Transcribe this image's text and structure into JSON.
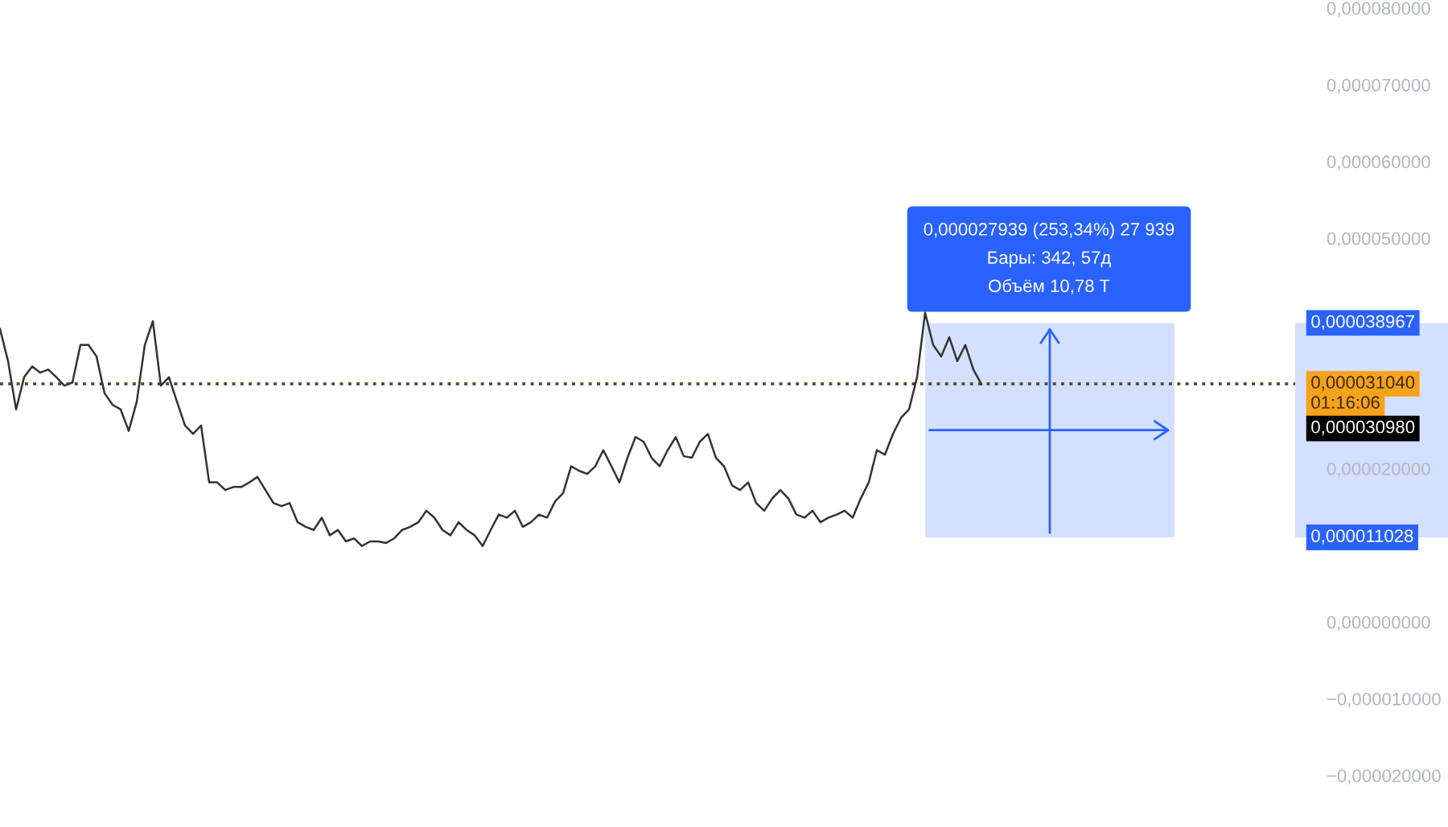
{
  "chart_data": {
    "type": "line",
    "categories": [
      null,
      null,
      null,
      null,
      null,
      null,
      null,
      null,
      null,
      null,
      null,
      null,
      null,
      null,
      null,
      null,
      null,
      null,
      null,
      null,
      null,
      null,
      null,
      null,
      null,
      null,
      null,
      null,
      null,
      null,
      null,
      null,
      null,
      null,
      null,
      null,
      null,
      null,
      null,
      null,
      null,
      null,
      null,
      null,
      null,
      null,
      null,
      null,
      null,
      null,
      null,
      null,
      null,
      null,
      null,
      null,
      null,
      null,
      null,
      null,
      null,
      null,
      null,
      null,
      null,
      null,
      null,
      null,
      null,
      null,
      null,
      null,
      null,
      null,
      null,
      null,
      null,
      null,
      null,
      null,
      null,
      null,
      null,
      null,
      null,
      null,
      null,
      null,
      null,
      null,
      null,
      null,
      null,
      null,
      null,
      null,
      null,
      null,
      null,
      null,
      null,
      null,
      null,
      null,
      null,
      null,
      null,
      null,
      null,
      null,
      null,
      null,
      null,
      null,
      null,
      null,
      null,
      null,
      null,
      null,
      null,
      null,
      null,
      null,
      null,
      null,
      null,
      null,
      null,
      null,
      null,
      null,
      null,
      null,
      null,
      null,
      null,
      null,
      null,
      null,
      null,
      null,
      null,
      null,
      null,
      null,
      null,
      null,
      null,
      null,
      null,
      null,
      null,
      null,
      null,
      null,
      null,
      null,
      null,
      null,
      null,
      null
    ],
    "series": [
      {
        "color": "#333333",
        "values": [
          3.82e-05,
          3.4e-05,
          2.77e-05,
          3.19e-05,
          3.33e-05,
          3.25e-05,
          3.29e-05,
          3.19e-05,
          3.08e-05,
          3.12e-05,
          3.61e-05,
          3.61e-05,
          3.46e-05,
          2.98e-05,
          2.83e-05,
          2.77e-05,
          2.49e-05,
          2.87e-05,
          3.61e-05,
          3.92e-05,
          3.08e-05,
          3.19e-05,
          2.87e-05,
          2.56e-05,
          2.45e-05,
          2.56e-05,
          1.82e-05,
          1.82e-05,
          1.72e-05,
          1.76e-05,
          1.76e-05,
          1.82e-05,
          1.89e-05,
          1.72e-05,
          1.55e-05,
          1.51e-05,
          1.55e-05,
          1.3e-05,
          1.24e-05,
          1.2e-05,
          1.36e-05,
          1.13e-05,
          1.2e-05,
          1.05e-05,
          1.09e-05,
          9.9e-06,
          1.05e-05,
          1.05e-05,
          1.03e-05,
          1.09e-05,
          1.2e-05,
          1.24e-05,
          1.3e-05,
          1.45e-05,
          1.36e-05,
          1.2e-05,
          1.13e-05,
          1.3e-05,
          1.2e-05,
          1.13e-05,
          9.9e-06,
          1.2e-05,
          1.4e-05,
          1.36e-05,
          1.45e-05,
          1.24e-05,
          1.3e-05,
          1.4e-05,
          1.36e-05,
          1.57e-05,
          1.68e-05,
          2.03e-05,
          1.97e-05,
          1.93e-05,
          2.03e-05,
          2.24e-05,
          2.03e-05,
          1.82e-05,
          2.14e-05,
          2.41e-05,
          2.35e-05,
          2.14e-05,
          2.03e-05,
          2.24e-05,
          2.41e-05,
          2.16e-05,
          2.14e-05,
          2.35e-05,
          2.45e-05,
          2.14e-05,
          2.03e-05,
          1.78e-05,
          1.72e-05,
          1.82e-05,
          1.55e-05,
          1.45e-05,
          1.61e-05,
          1.72e-05,
          1.61e-05,
          1.4e-05,
          1.36e-05,
          1.45e-05,
          1.3e-05,
          1.36e-05,
          1.4e-05,
          1.45e-05,
          1.36e-05,
          1.61e-05,
          1.82e-05,
          2.24e-05,
          2.18e-05,
          2.45e-05,
          2.66e-05,
          2.77e-05,
          3.19e-05,
          4.03e-05,
          3.61e-05,
          3.46e-05,
          3.71e-05,
          3.4e-05,
          3.61e-05,
          3.29e-05,
          3.1e-05,
          null,
          null,
          null,
          null,
          null,
          null,
          null,
          null,
          null,
          null,
          null,
          null,
          null,
          null,
          null,
          null,
          null,
          null,
          null,
          null,
          null,
          null,
          null,
          null,
          null,
          null,
          null,
          null,
          null,
          null,
          null,
          null,
          null,
          null,
          null,
          null,
          null,
          null,
          null
        ]
      }
    ],
    "ylim": [
      -2e-05,
      8e-05
    ],
    "yticks": [
      {
        "value": -2e-05,
        "label": "−0,000020000"
      },
      {
        "value": -1e-05,
        "label": "−0,000010000"
      },
      {
        "value": 0,
        "label": "0,000000000"
      },
      {
        "value": 2e-05,
        "label": "0,000020000"
      },
      {
        "value": 5e-05,
        "label": "0,000050000"
      },
      {
        "value": 6e-05,
        "label": "0,000060000"
      },
      {
        "value": 7e-05,
        "label": "0,000070000"
      },
      {
        "value": 8e-05,
        "label": "0,000080000"
      }
    ],
    "tick_labels": "y",
    "grid": false,
    "line_style": "solid",
    "ref_lines": [
      {
        "axis": "y",
        "value": 3.104e-05,
        "label": "0,000031040",
        "color": "#5c4a1e",
        "line_style": "dotted"
      }
    ],
    "bands": [
      {
        "axis": "y",
        "from": 1.1028e-05,
        "to": 3.8967e-05,
        "color": "#2962ff"
      }
    ],
    "annotations": [
      "0,000027939 (253,34%) 27 939",
      "Бары: 342, 57д",
      "Объём 10,78 T",
      "0,000038967",
      "01:16:06",
      "0,000030980",
      "0,000011028"
    ]
  }
}
